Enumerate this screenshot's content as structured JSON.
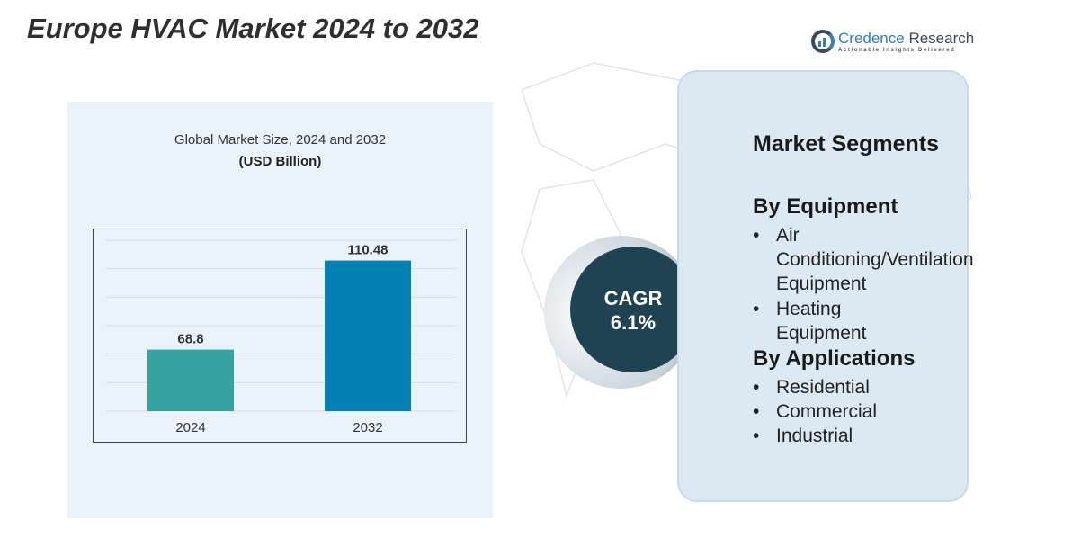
{
  "title": "Europe HVAC Market 2024 to 2032",
  "logo": {
    "name1": "Credence",
    "name2": "Research",
    "tagline": "Actionable Insights Delivered"
  },
  "chart_data": {
    "type": "bar",
    "title": "Global Market Size, 2024 and 2032",
    "unit": "(USD Billion)",
    "categories": [
      "2024",
      "2032"
    ],
    "values": [
      68.8,
      110.48
    ],
    "labels": [
      "68.8",
      "110.48"
    ],
    "colors": [
      "#35a3a2",
      "#0480b4"
    ],
    "ylim": [
      40,
      120
    ],
    "grid": true
  },
  "cagr": {
    "label": "CAGR",
    "value": "6.1%"
  },
  "segments": {
    "heading": "Market Segments",
    "groups": [
      {
        "title": "By Equipment",
        "items": [
          "Air Conditioning/Ventilation Equipment",
          "Heating Equipment"
        ]
      },
      {
        "title": "By Applications",
        "items": [
          "Residential",
          "Commercial",
          "Industrial"
        ]
      }
    ]
  }
}
